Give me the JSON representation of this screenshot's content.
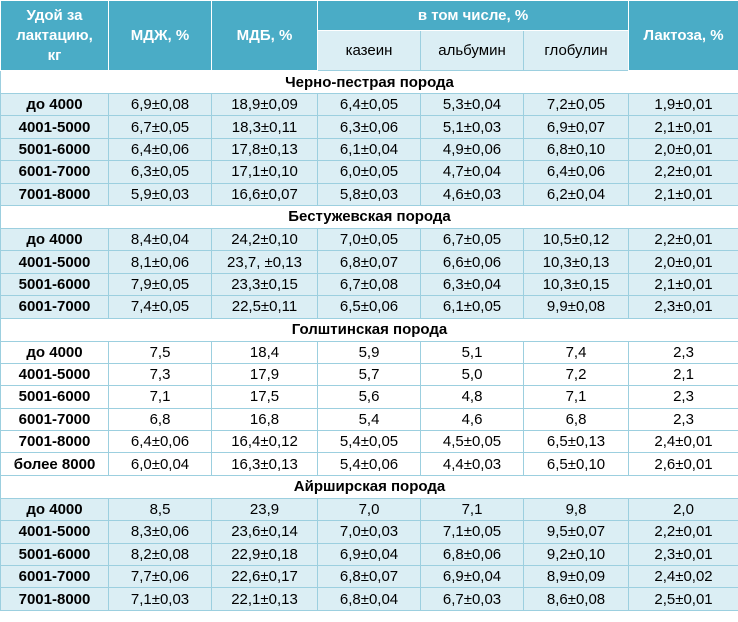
{
  "header": {
    "yield": [
      "Удой за",
      "лактацию,",
      "кг"
    ],
    "mdzh": "МДЖ, %",
    "mdb": "МДБ, %",
    "incl": "в том числе, %",
    "casein": "казеин",
    "albumin": "альбумин",
    "globulin": "глобулин",
    "lactose": "Лактоза, %"
  },
  "sections": [
    {
      "title": "Черно-пестрая порода",
      "shaded": true,
      "rows": [
        [
          "до 4000",
          "6,9±0,08",
          "18,9±0,09",
          "6,4±0,05",
          "5,3±0,04",
          "7,2±0,05",
          "1,9±0,01"
        ],
        [
          "4001-5000",
          "6,7±0,05",
          "18,3±0,11",
          "6,3±0,06",
          "5,1±0,03",
          "6,9±0,07",
          "2,1±0,01"
        ],
        [
          "5001-6000",
          "6,4±0,06",
          "17,8±0,13",
          "6,1±0,04",
          "4,9±0,06",
          "6,8±0,10",
          "2,0±0,01"
        ],
        [
          "6001-7000",
          "6,3±0,05",
          "17,1±0,10",
          "6,0±0,05",
          "4,7±0,04",
          "6,4±0,06",
          "2,2±0,01"
        ],
        [
          "7001-8000",
          "5,9±0,03",
          "16,6±0,07",
          "5,8±0,03",
          "4,6±0,03",
          "6,2±0,04",
          "2,1±0,01"
        ]
      ]
    },
    {
      "title": "Бестужевская порода",
      "shaded": true,
      "rows": [
        [
          "до 4000",
          "8,4±0,04",
          "24,2±0,10",
          "7,0±0,05",
          "6,7±0,05",
          "10,5±0,12",
          "2,2±0,01"
        ],
        [
          "4001-5000",
          "8,1±0,06",
          "23,7, ±0,13",
          "6,8±0,07",
          "6,6±0,06",
          "10,3±0,13",
          "2,0±0,01"
        ],
        [
          "5001-6000",
          "7,9±0,05",
          "23,3±0,15",
          "6,7±0,08",
          "6,3±0,04",
          "10,3±0,15",
          "2,1±0,01"
        ],
        [
          "6001-7000",
          "7,4±0,05",
          "22,5±0,11",
          "6,5±0,06",
          "6,1±0,05",
          "9,9±0,08",
          "2,3±0,01"
        ]
      ]
    },
    {
      "title": "Голштинская порода",
      "shaded": false,
      "rows": [
        [
          "до 4000",
          "7,5",
          "18,4",
          "5,9",
          "5,1",
          "7,4",
          "2,3"
        ],
        [
          "4001-5000",
          "7,3",
          "17,9",
          "5,7",
          "5,0",
          "7,2",
          "2,1"
        ],
        [
          "5001-6000",
          "7,1",
          "17,5",
          "5,6",
          "4,8",
          "7,1",
          "2,3"
        ],
        [
          "6001-7000",
          "6,8",
          "16,8",
          "5,4",
          "4,6",
          "6,8",
          "2,3"
        ],
        [
          "7001-8000",
          "6,4±0,06",
          "16,4±0,12",
          "5,4±0,05",
          "4,5±0,05",
          "6,5±0,13",
          "2,4±0,01"
        ],
        [
          "более 8000",
          "6,0±0,04",
          "16,3±0,13",
          "5,4±0,06",
          "4,4±0,03",
          "6,5±0,10",
          "2,6±0,01"
        ]
      ]
    },
    {
      "title": "Айрширская порода",
      "shaded": true,
      "rows": [
        [
          "до 4000",
          "8,5",
          "23,9",
          "7,0",
          "7,1",
          "9,8",
          "2,0"
        ],
        [
          "4001-5000",
          "8,3±0,06",
          "23,6±0,14",
          "7,0±0,03",
          "7,1±0,05",
          "9,5±0,07",
          "2,2±0,01"
        ],
        [
          "5001-6000",
          "8,2±0,08",
          "22,9±0,18",
          "6,9±0,04",
          "6,8±0,06",
          "9,2±0,10",
          "2,3±0,01"
        ],
        [
          "6001-7000",
          "7,7±0,06",
          "22,6±0,17",
          "6,8±0,07",
          "6,9±0,04",
          "8,9±0,09",
          "2,4±0,02"
        ],
        [
          "7001-8000",
          "7,1±0,03",
          "22,1±0,13",
          "6,8±0,04",
          "6,7±0,03",
          "8,6±0,08",
          "2,5±0,01"
        ]
      ]
    }
  ],
  "colors": {
    "header_bg": "#4aacc6",
    "row_shade": "#dbeef4"
  }
}
